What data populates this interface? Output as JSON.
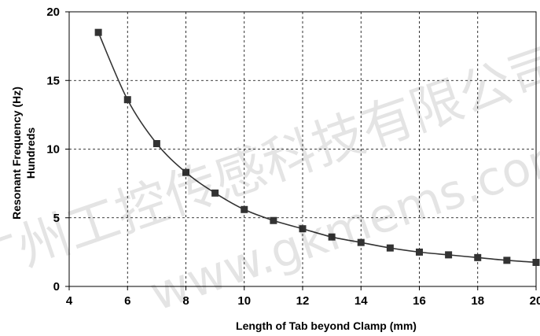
{
  "chart_data": {
    "type": "line",
    "title": "",
    "xlabel": "Length of Tab beyond Clamp (mm)",
    "ylabel_lines": [
      "Resonant Frequency (Hz)",
      "Hundreds"
    ],
    "xlim": [
      4,
      20
    ],
    "ylim": [
      0,
      20
    ],
    "x_ticks": [
      "4",
      "6",
      "8",
      "10",
      "12",
      "14",
      "16",
      "18",
      "20"
    ],
    "y_ticks": [
      "0",
      "5",
      "10",
      "15",
      "20"
    ],
    "grid": true,
    "legend": "none",
    "series": [
      {
        "marker": "square",
        "color": "#333333",
        "x": [
          5,
          6,
          7,
          8,
          9,
          10,
          11,
          12,
          13,
          14,
          15,
          16,
          17,
          18,
          19,
          20
        ],
        "y": [
          18.5,
          13.6,
          10.4,
          8.3,
          6.8,
          5.6,
          4.8,
          4.2,
          3.6,
          3.2,
          2.8,
          2.5,
          2.3,
          2.1,
          1.9,
          1.75
        ]
      }
    ]
  },
  "watermark": {
    "line1": "广州工控传感科技有限公司",
    "line2": "www.gkmems.com"
  }
}
